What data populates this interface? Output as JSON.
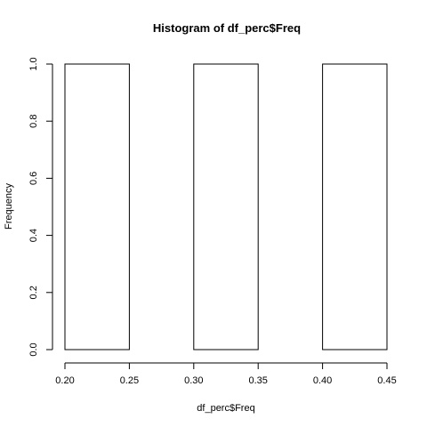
{
  "chart_data": {
    "type": "bar",
    "title": "Histogram of df_perc$Freq",
    "xlabel": "df_perc$Freq",
    "ylabel": "Frequency",
    "bins": [
      {
        "x0": 0.2,
        "x1": 0.25,
        "count": 1
      },
      {
        "x0": 0.25,
        "x1": 0.3,
        "count": 0
      },
      {
        "x0": 0.3,
        "x1": 0.35,
        "count": 1
      },
      {
        "x0": 0.35,
        "x1": 0.4,
        "count": 0
      },
      {
        "x0": 0.4,
        "x1": 0.45,
        "count": 1
      }
    ],
    "xlim": [
      0.2,
      0.45
    ],
    "ylim": [
      0.0,
      1.0
    ],
    "xticks": [
      "0.20",
      "0.25",
      "0.30",
      "0.35",
      "0.40",
      "0.45"
    ],
    "yticks": [
      "0.0",
      "0.2",
      "0.4",
      "0.6",
      "0.8",
      "1.0"
    ],
    "grid": false,
    "legend": "none",
    "colors": {
      "bar_fill": "#ffffff",
      "bar_stroke": "#000000"
    }
  }
}
